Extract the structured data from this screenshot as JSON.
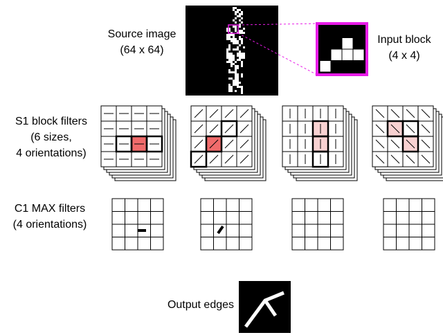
{
  "source_image": {
    "label": "Source image",
    "size": "(64 x 64)"
  },
  "input_block": {
    "label": "Input block",
    "size": "(4 x 4)"
  },
  "s1_filters": {
    "lines": [
      "S1 block filters",
      "(6 sizes,",
      "4 orientations)"
    ]
  },
  "c1_filters": {
    "lines": [
      "C1 MAX filters",
      "(4 orientations)"
    ]
  },
  "output": {
    "label": "Output edges"
  }
}
